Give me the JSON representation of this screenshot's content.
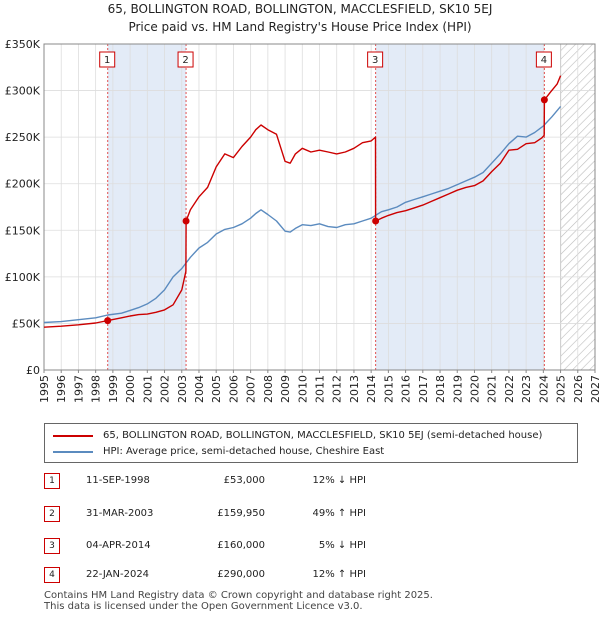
{
  "title_line1": "65, BOLLINGTON ROAD, BOLLINGTON, MACCLESFIELD, SK10 5EJ",
  "title_line2": "Price paid vs. HM Land Registry's House Price Index (HPI)",
  "colors": {
    "price_line": "#cc0000",
    "hpi_line": "#5b8bbf",
    "shade": "#e3ebf7",
    "marker_line": "#e05050",
    "grid": "#dddddd"
  },
  "chart_data": {
    "type": "line",
    "xlabel": "",
    "ylabel": "",
    "xlim": [
      1995,
      2027
    ],
    "ylim": [
      0,
      350000
    ],
    "x_ticks": [
      "1995",
      "1996",
      "1997",
      "1998",
      "1999",
      "2000",
      "2001",
      "2002",
      "2003",
      "2004",
      "2005",
      "2006",
      "2007",
      "2008",
      "2009",
      "2010",
      "2011",
      "2012",
      "2013",
      "2014",
      "2015",
      "2016",
      "2017",
      "2018",
      "2019",
      "2020",
      "2021",
      "2022",
      "2023",
      "2024",
      "2025",
      "2026",
      "2027"
    ],
    "y_ticks": [
      {
        "value": 0,
        "label": "£0"
      },
      {
        "value": 50000,
        "label": "£50K"
      },
      {
        "value": 100000,
        "label": "£100K"
      },
      {
        "value": 150000,
        "label": "£150K"
      },
      {
        "value": 200000,
        "label": "£200K"
      },
      {
        "value": 250000,
        "label": "£250K"
      },
      {
        "value": 300000,
        "label": "£300K"
      },
      {
        "value": 350000,
        "label": "£350K"
      }
    ],
    "forecast_start": 2025.0,
    "shaded_periods": [
      [
        1998.7,
        2003.25
      ],
      [
        2014.26,
        2024.06
      ]
    ],
    "series": [
      {
        "name": "65, BOLLINGTON ROAD, BOLLINGTON, MACCLESFIELD, SK10 5EJ (semi-detached house)",
        "color": "#cc0000",
        "x": [
          1995.0,
          1996.0,
          1997.0,
          1998.0,
          1998.7,
          1999.5,
          2000.0,
          2000.5,
          2001.0,
          2001.5,
          2002.0,
          2002.5,
          2003.0,
          2003.24,
          2003.25,
          2003.5,
          2004.0,
          2004.5,
          2005.0,
          2005.5,
          2006.0,
          2006.5,
          2007.0,
          2007.3,
          2007.6,
          2008.0,
          2008.5,
          2009.0,
          2009.3,
          2009.6,
          2010.0,
          2010.5,
          2011.0,
          2011.5,
          2012.0,
          2012.5,
          2013.0,
          2013.5,
          2014.0,
          2014.25,
          2014.26,
          2014.6,
          2015.0,
          2015.5,
          2016.0,
          2016.5,
          2017.0,
          2017.5,
          2018.0,
          2018.5,
          2019.0,
          2019.5,
          2020.0,
          2020.5,
          2021.0,
          2021.5,
          2022.0,
          2022.5,
          2023.0,
          2023.5,
          2023.9,
          2024.05,
          2024.06,
          2024.4,
          2024.8,
          2025.0
        ],
        "y": [
          46000,
          47000,
          48500,
          50500,
          53000,
          56000,
          58000,
          59500,
          60000,
          62000,
          64500,
          70000,
          86000,
          106000,
          159950,
          172000,
          186000,
          196000,
          218000,
          232000,
          228000,
          240000,
          250000,
          258000,
          263000,
          258000,
          253000,
          224000,
          222000,
          232000,
          238000,
          234000,
          236000,
          234000,
          232000,
          234000,
          238000,
          244000,
          246000,
          250000,
          160000,
          163000,
          166000,
          169000,
          171000,
          174000,
          177000,
          181000,
          185000,
          189000,
          193000,
          196000,
          198000,
          203000,
          213000,
          222000,
          236000,
          237000,
          243000,
          244000,
          249000,
          252000,
          290000,
          298000,
          307000,
          316000
        ]
      },
      {
        "name": "HPI: Average price, semi-detached house, Cheshire East",
        "color": "#5b8bbf",
        "x": [
          1995.0,
          1996.0,
          1997.0,
          1998.0,
          1998.7,
          1999.5,
          2000.0,
          2000.5,
          2001.0,
          2001.5,
          2002.0,
          2002.5,
          2003.0,
          2003.5,
          2004.0,
          2004.5,
          2005.0,
          2005.5,
          2006.0,
          2006.5,
          2007.0,
          2007.3,
          2007.6,
          2008.0,
          2008.5,
          2009.0,
          2009.3,
          2009.6,
          2010.0,
          2010.5,
          2011.0,
          2011.5,
          2012.0,
          2012.5,
          2013.0,
          2013.5,
          2014.0,
          2014.25,
          2014.6,
          2015.0,
          2015.5,
          2016.0,
          2016.5,
          2017.0,
          2017.5,
          2018.0,
          2018.5,
          2019.0,
          2019.5,
          2020.0,
          2020.5,
          2021.0,
          2021.5,
          2022.0,
          2022.5,
          2023.0,
          2023.5,
          2024.0,
          2024.5,
          2025.0
        ],
        "y": [
          51000,
          52000,
          54000,
          56000,
          59000,
          61000,
          64000,
          67000,
          71000,
          77000,
          86000,
          100000,
          109000,
          121000,
          131000,
          137000,
          146000,
          151000,
          153000,
          157000,
          163000,
          168000,
          172000,
          167000,
          160000,
          149000,
          148000,
          152000,
          156000,
          155000,
          157000,
          154000,
          153000,
          156000,
          157000,
          160000,
          163000,
          166000,
          170000,
          172000,
          175000,
          180000,
          183000,
          186000,
          189000,
          192000,
          195000,
          199000,
          203000,
          207000,
          212000,
          222000,
          232000,
          243000,
          251000,
          250000,
          255000,
          262000,
          272000,
          283000
        ]
      }
    ],
    "sale_markers": [
      {
        "n": "1",
        "x": 1998.7,
        "y": 53000
      },
      {
        "n": "2",
        "x": 2003.25,
        "y": 159950
      },
      {
        "n": "3",
        "x": 2014.26,
        "y": 160000
      },
      {
        "n": "4",
        "x": 2024.06,
        "y": 290000
      }
    ]
  },
  "legend": [
    {
      "label": "65, BOLLINGTON ROAD, BOLLINGTON, MACCLESFIELD, SK10 5EJ (semi-detached house)",
      "color": "#cc0000"
    },
    {
      "label": "HPI: Average price, semi-detached house, Cheshire East",
      "color": "#5b8bbf"
    }
  ],
  "sales": [
    {
      "n": "1",
      "date": "11-SEP-1998",
      "price": "£53,000",
      "hpi": "12% ↓ HPI"
    },
    {
      "n": "2",
      "date": "31-MAR-2003",
      "price": "£159,950",
      "hpi": "49% ↑ HPI"
    },
    {
      "n": "3",
      "date": "04-APR-2014",
      "price": "£160,000",
      "hpi": "5% ↓ HPI"
    },
    {
      "n": "4",
      "date": "22-JAN-2024",
      "price": "£290,000",
      "hpi": "12% ↑ HPI"
    }
  ],
  "footer_line1": "Contains HM Land Registry data © Crown copyright and database right 2025.",
  "footer_line2": "This data is licensed under the Open Government Licence v3.0."
}
